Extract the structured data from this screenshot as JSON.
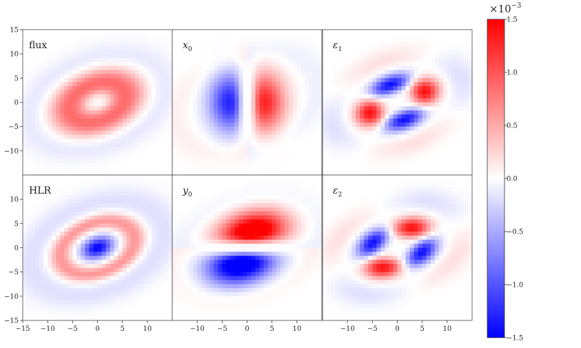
{
  "chart_data": {
    "type": "heatmap",
    "colormap": "bwr",
    "grid": false,
    "layout": "2 rows x 3 columns, shared axes",
    "xlim": [
      -15,
      15
    ],
    "ylim": [
      -15,
      15
    ],
    "x_ticks": [
      -15,
      -10,
      -5,
      0,
      5,
      10
    ],
    "x_ticks_other": [
      -10,
      -5,
      0,
      5,
      10
    ],
    "y_ticks_top": [
      -10,
      -5,
      0,
      5,
      10,
      15
    ],
    "y_ticks_bottom": [
      -15,
      -10,
      -5,
      0,
      5,
      10
    ],
    "panels": [
      {
        "label": "flux",
        "map": "ring"
      },
      {
        "label": "x",
        "sub": "0",
        "map": "dipole-x"
      },
      {
        "label": "ε",
        "sub": "1",
        "map": "quad-plus"
      },
      {
        "label": "HLR",
        "map": "core-ring"
      },
      {
        "label": "y",
        "sub": "0",
        "map": "dipole-y"
      },
      {
        "label": "ε",
        "sub": "2",
        "map": "quad-cross"
      }
    ],
    "colorbar": {
      "min": -1.5,
      "max": 1.5,
      "ticks": [
        "1.5",
        "1.0",
        "0.5",
        "0.0",
        "−0.5",
        "−1.0",
        "−1.5"
      ],
      "scale_label": "×10",
      "scale_exp": "−3"
    },
    "colors": {
      "positive": "#ff0000",
      "zero": "#ffffff",
      "negative": "#0000ff"
    }
  }
}
